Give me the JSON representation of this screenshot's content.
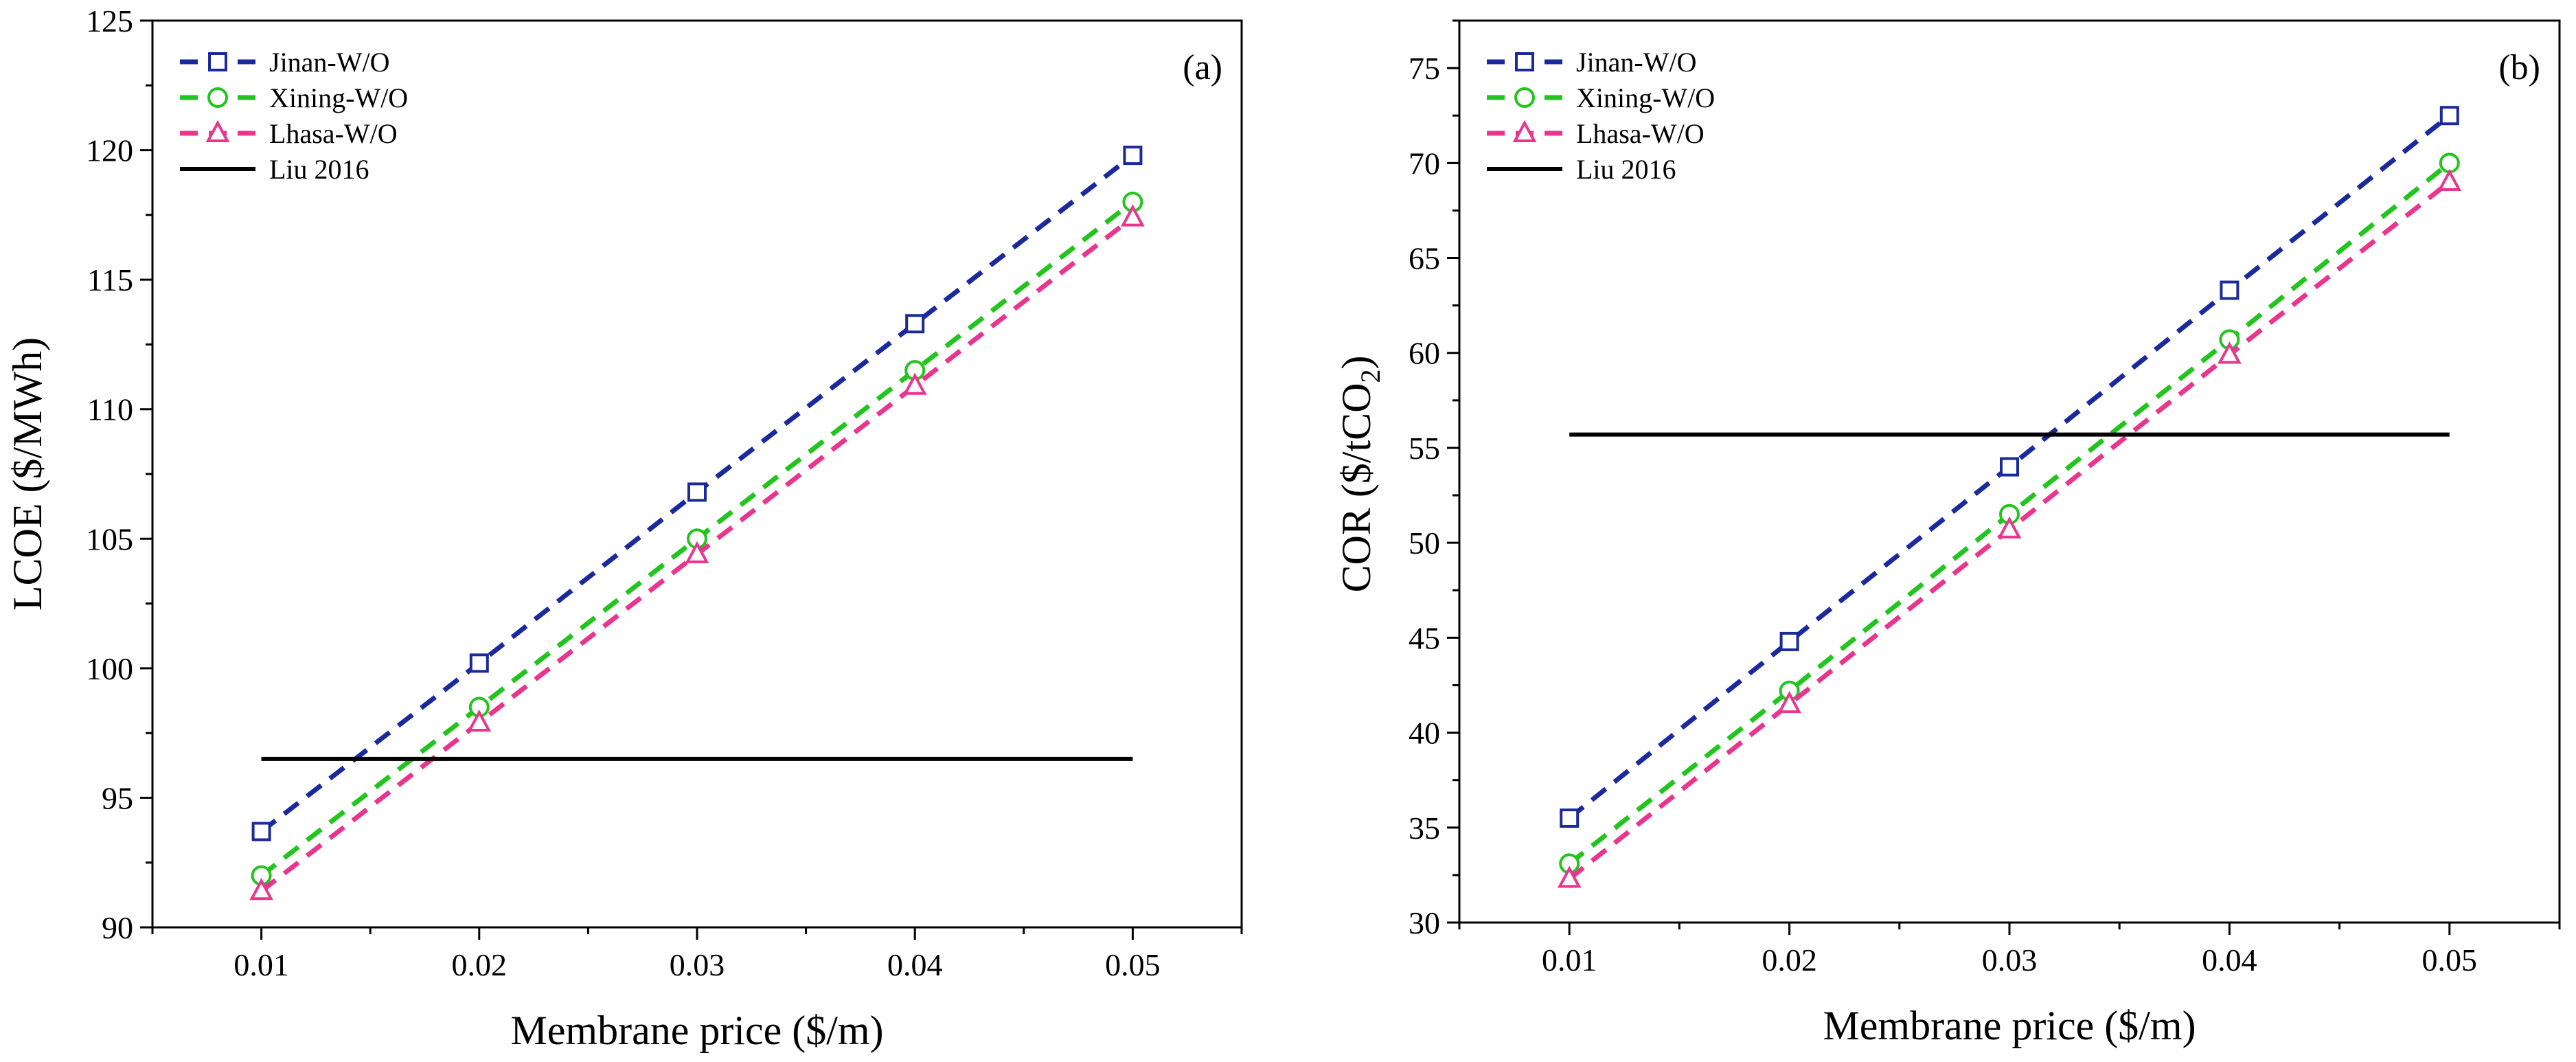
{
  "chart_data": [
    {
      "type": "line",
      "panel_label": "(a)",
      "xlabel": "Membrane price ($/m)",
      "ylabel": "LCOE ($/MWh)",
      "ylabel_sub": "",
      "ylabel_close": "",
      "x": [
        0.01,
        0.02,
        0.03,
        0.04,
        0.05
      ],
      "x_tick_labels": [
        "0.01",
        "0.02",
        "0.03",
        "0.04",
        "0.05"
      ],
      "xlim": [
        0.005,
        0.055
      ],
      "ylim": [
        90,
        125
      ],
      "y_ticks": [
        90,
        95,
        100,
        105,
        110,
        115,
        120,
        125
      ],
      "y_minor_step": 2.5,
      "legend_position": "top-left",
      "series": [
        {
          "name": "Jinan-W/O",
          "color": "#1a2a9c",
          "marker": "square",
          "dash": true,
          "values": [
            93.7,
            100.2,
            106.8,
            113.3,
            119.8
          ]
        },
        {
          "name": "Xining-W/O",
          "color": "#22c41e",
          "marker": "circle",
          "dash": true,
          "values": [
            92.0,
            98.5,
            105.0,
            111.5,
            118.0
          ]
        },
        {
          "name": "Lhasa-W/O",
          "color": "#e8368f",
          "marker": "triangle",
          "dash": true,
          "values": [
            91.4,
            97.9,
            104.4,
            110.9,
            117.4
          ]
        },
        {
          "name": "Liu 2016",
          "color": "#000000",
          "marker": "none",
          "dash": false,
          "values": [
            96.5,
            96.5,
            96.5,
            96.5,
            96.5
          ]
        }
      ]
    },
    {
      "type": "line",
      "panel_label": "(b)",
      "xlabel": "Membrane price ($/m)",
      "ylabel": "COR ($/tCO",
      "ylabel_sub": "2",
      "ylabel_close": ")",
      "x": [
        0.01,
        0.02,
        0.03,
        0.04,
        0.05
      ],
      "x_tick_labels": [
        "0.01",
        "0.02",
        "0.03",
        "0.04",
        "0.05"
      ],
      "xlim": [
        0.005,
        0.055
      ],
      "ylim": [
        30,
        77.5
      ],
      "y_ticks": [
        30,
        35,
        40,
        45,
        50,
        55,
        60,
        65,
        70,
        75
      ],
      "y_minor_step": 2.5,
      "legend_position": "top-left",
      "series": [
        {
          "name": "Jinan-W/O",
          "color": "#1a2a9c",
          "marker": "square",
          "dash": true,
          "values": [
            35.5,
            44.8,
            54.0,
            63.3,
            72.5
          ]
        },
        {
          "name": "Xining-W/O",
          "color": "#22c41e",
          "marker": "circle",
          "dash": true,
          "values": [
            33.1,
            42.2,
            51.5,
            60.7,
            70.0
          ]
        },
        {
          "name": "Lhasa-W/O",
          "color": "#e8368f",
          "marker": "triangle",
          "dash": true,
          "values": [
            32.3,
            41.5,
            50.7,
            59.9,
            69.0
          ]
        },
        {
          "name": "Liu 2016",
          "color": "#000000",
          "marker": "none",
          "dash": false,
          "values": [
            55.7,
            55.7,
            55.7,
            55.7,
            55.7
          ]
        }
      ]
    }
  ]
}
